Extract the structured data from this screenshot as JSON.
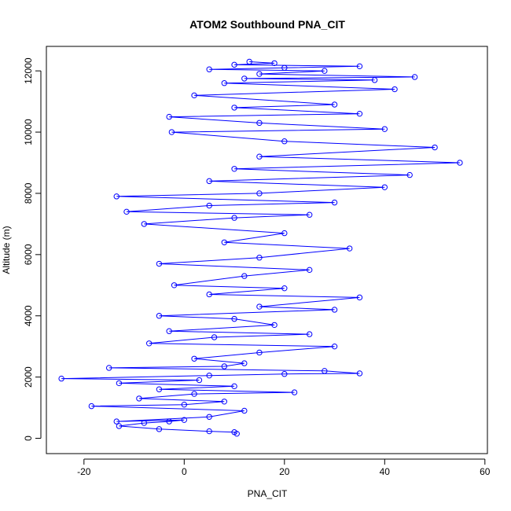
{
  "chart_data": {
    "type": "line",
    "title": "ATOM2 Southbound PNA_CIT",
    "xlabel": "PNA_CIT",
    "ylabel": "Altitude (m)",
    "xlim": [
      -27.5,
      60.5
    ],
    "ylim": [
      -500,
      12800
    ],
    "x_ticks": [
      -20,
      0,
      20,
      40,
      60
    ],
    "y_ticks": [
      0,
      2000,
      4000,
      6000,
      8000,
      10000,
      12000
    ],
    "grid": false,
    "legend": "none",
    "marker": "open-circle",
    "series_color": "#0000ff",
    "series": [
      {
        "points": [
          [
            10.5,
            150
          ],
          [
            10,
            200
          ],
          [
            5,
            230
          ],
          [
            -5,
            300
          ],
          [
            -13,
            400
          ],
          [
            -8,
            500
          ],
          [
            -3,
            550
          ],
          [
            0,
            600
          ],
          [
            -13.5,
            550
          ],
          [
            5,
            700
          ],
          [
            12,
            900
          ],
          [
            -18.5,
            1050
          ],
          [
            0,
            1100
          ],
          [
            8,
            1200
          ],
          [
            -9,
            1300
          ],
          [
            2,
            1450
          ],
          [
            22,
            1500
          ],
          [
            -5,
            1600
          ],
          [
            10,
            1700
          ],
          [
            -13,
            1800
          ],
          [
            3,
            1900
          ],
          [
            -24.5,
            1950
          ],
          [
            5,
            2050
          ],
          [
            20,
            2100
          ],
          [
            35,
            2120
          ],
          [
            28,
            2200
          ],
          [
            -15,
            2300
          ],
          [
            8,
            2350
          ],
          [
            12,
            2450
          ],
          [
            2,
            2600
          ],
          [
            15,
            2800
          ],
          [
            30,
            3000
          ],
          [
            -7,
            3100
          ],
          [
            6,
            3300
          ],
          [
            25,
            3400
          ],
          [
            -3,
            3500
          ],
          [
            18,
            3700
          ],
          [
            10,
            3900
          ],
          [
            -5,
            4000
          ],
          [
            30,
            4200
          ],
          [
            15,
            4300
          ],
          [
            35,
            4600
          ],
          [
            5,
            4700
          ],
          [
            20,
            4900
          ],
          [
            -2,
            5000
          ],
          [
            12,
            5300
          ],
          [
            25,
            5500
          ],
          [
            -5,
            5700
          ],
          [
            15,
            5900
          ],
          [
            33,
            6200
          ],
          [
            8,
            6400
          ],
          [
            20,
            6700
          ],
          [
            -8,
            7000
          ],
          [
            10,
            7200
          ],
          [
            25,
            7300
          ],
          [
            -11.5,
            7400
          ],
          [
            5,
            7600
          ],
          [
            30,
            7700
          ],
          [
            -13.5,
            7900
          ],
          [
            15,
            8000
          ],
          [
            40,
            8200
          ],
          [
            5,
            8400
          ],
          [
            45,
            8600
          ],
          [
            10,
            8800
          ],
          [
            55,
            9000
          ],
          [
            15,
            9200
          ],
          [
            50,
            9500
          ],
          [
            20,
            9700
          ],
          [
            -2.5,
            10000
          ],
          [
            40,
            10100
          ],
          [
            15,
            10300
          ],
          [
            -3,
            10500
          ],
          [
            35,
            10600
          ],
          [
            10,
            10800
          ],
          [
            30,
            10900
          ],
          [
            2,
            11200
          ],
          [
            42,
            11400
          ],
          [
            8,
            11600
          ],
          [
            38,
            11700
          ],
          [
            12,
            11750
          ],
          [
            46,
            11800
          ],
          [
            15,
            11900
          ],
          [
            28,
            12000
          ],
          [
            5,
            12050
          ],
          [
            20,
            12100
          ],
          [
            35,
            12150
          ],
          [
            10,
            12200
          ],
          [
            18,
            12250
          ],
          [
            13,
            12300
          ]
        ]
      }
    ]
  }
}
